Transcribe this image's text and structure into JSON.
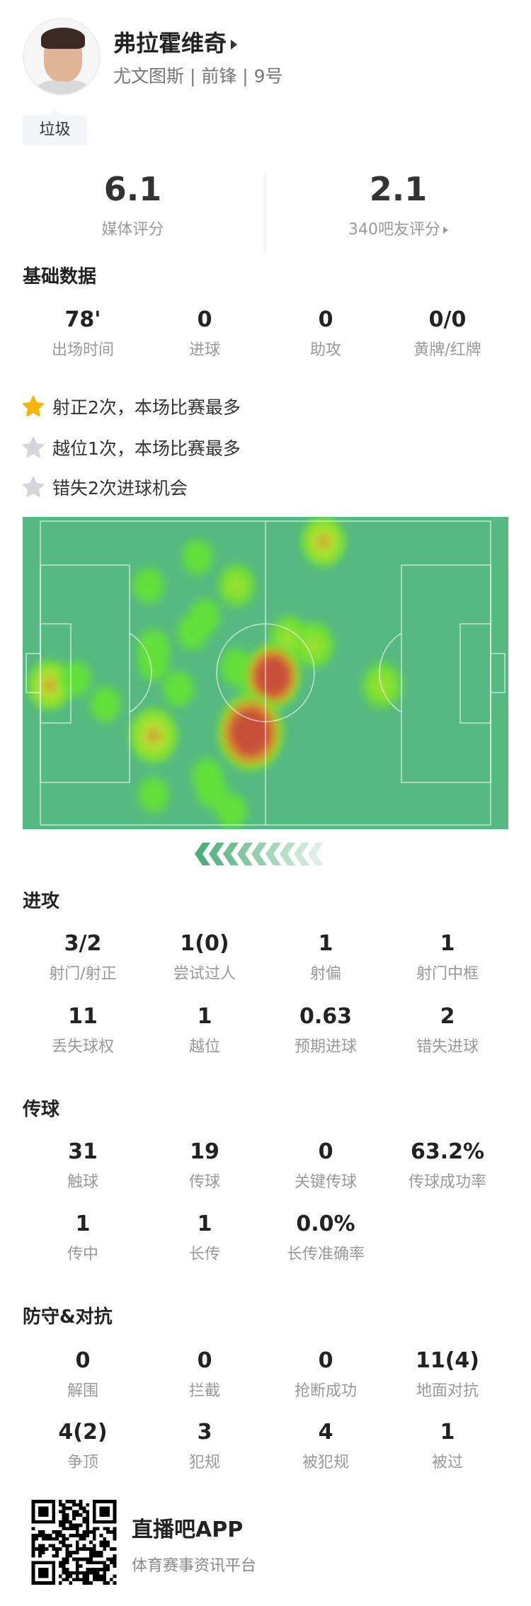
{
  "player": {
    "name": "弗拉霍维奇",
    "info": "尤文图斯 | 前锋 | 9号",
    "tag": "垃圾"
  },
  "ratings": {
    "media_value": "6.1",
    "media_label": "媒体评分",
    "fan_value": "2.1",
    "fan_label": "340吧友评分"
  },
  "basic": {
    "title": "基础数据",
    "items": [
      {
        "v": "78'",
        "l": "出场时间"
      },
      {
        "v": "0",
        "l": "进球"
      },
      {
        "v": "0",
        "l": "助攻"
      },
      {
        "v": "0/0",
        "l": "黄牌/红牌"
      }
    ]
  },
  "highlights": [
    {
      "text": "射正2次，本场比赛最多",
      "star_color": "#f7b500"
    },
    {
      "text": "越位1次，本场比赛最多",
      "star_color": "#d4d6dc"
    },
    {
      "text": "错失2次进球机会",
      "star_color": "#d4d6dc"
    }
  ],
  "heatmap": {
    "pitch_color": "#56b981",
    "attack_direction": "left",
    "points": [
      {
        "x": 62,
        "y": 8,
        "i": 2
      },
      {
        "x": 36,
        "y": 13,
        "i": 1
      },
      {
        "x": 26,
        "y": 22,
        "i": 1
      },
      {
        "x": 44,
        "y": 22,
        "i": 1.5
      },
      {
        "x": 37.5,
        "y": 32,
        "i": 1
      },
      {
        "x": 35,
        "y": 37,
        "i": 1
      },
      {
        "x": 27,
        "y": 42,
        "i": 1.2
      },
      {
        "x": 27,
        "y": 47,
        "i": 1
      },
      {
        "x": 55,
        "y": 39,
        "i": 1.8
      },
      {
        "x": 60,
        "y": 41,
        "i": 1.8
      },
      {
        "x": 44,
        "y": 48,
        "i": 1.2
      },
      {
        "x": 48,
        "y": 54,
        "i": 1.2
      },
      {
        "x": 51.5,
        "y": 51,
        "i": 3
      },
      {
        "x": 5.5,
        "y": 54,
        "i": 2
      },
      {
        "x": 11,
        "y": 52,
        "i": 1
      },
      {
        "x": 17,
        "y": 60,
        "i": 1
      },
      {
        "x": 32,
        "y": 55,
        "i": 1
      },
      {
        "x": 74,
        "y": 54,
        "i": 1.8
      },
      {
        "x": 27,
        "y": 70,
        "i": 2.5
      },
      {
        "x": 47,
        "y": 69,
        "i": 4
      },
      {
        "x": 38,
        "y": 83,
        "i": 1
      },
      {
        "x": 39,
        "y": 88,
        "i": 1
      },
      {
        "x": 27,
        "y": 89,
        "i": 1
      },
      {
        "x": 43,
        "y": 94,
        "i": 1
      }
    ]
  },
  "attack": {
    "title": "进攻",
    "items": [
      {
        "v": "3/2",
        "l": "射门/射正"
      },
      {
        "v": "1(0)",
        "l": "尝试过人"
      },
      {
        "v": "1",
        "l": "射偏"
      },
      {
        "v": "1",
        "l": "射门中框"
      },
      {
        "v": "11",
        "l": "丢失球权"
      },
      {
        "v": "1",
        "l": "越位"
      },
      {
        "v": "0.63",
        "l": "预期进球"
      },
      {
        "v": "2",
        "l": "错失进球"
      }
    ]
  },
  "passing": {
    "title": "传球",
    "items": [
      {
        "v": "31",
        "l": "触球"
      },
      {
        "v": "19",
        "l": "传球"
      },
      {
        "v": "0",
        "l": "关键传球"
      },
      {
        "v": "63.2%",
        "l": "传球成功率"
      },
      {
        "v": "1",
        "l": "传中"
      },
      {
        "v": "1",
        "l": "长传"
      },
      {
        "v": "0.0%",
        "l": "长传准确率"
      }
    ]
  },
  "defense": {
    "title": "防守&对抗",
    "items": [
      {
        "v": "0",
        "l": "解围"
      },
      {
        "v": "0",
        "l": "拦截"
      },
      {
        "v": "0",
        "l": "抢断成功"
      },
      {
        "v": "11(4)",
        "l": "地面对抗"
      },
      {
        "v": "4(2)",
        "l": "争顶"
      },
      {
        "v": "3",
        "l": "犯规"
      },
      {
        "v": "4",
        "l": "被犯规"
      },
      {
        "v": "1",
        "l": "被过"
      }
    ]
  },
  "footer": {
    "app": "直播吧APP",
    "slogan": "体育赛事资讯平台"
  }
}
